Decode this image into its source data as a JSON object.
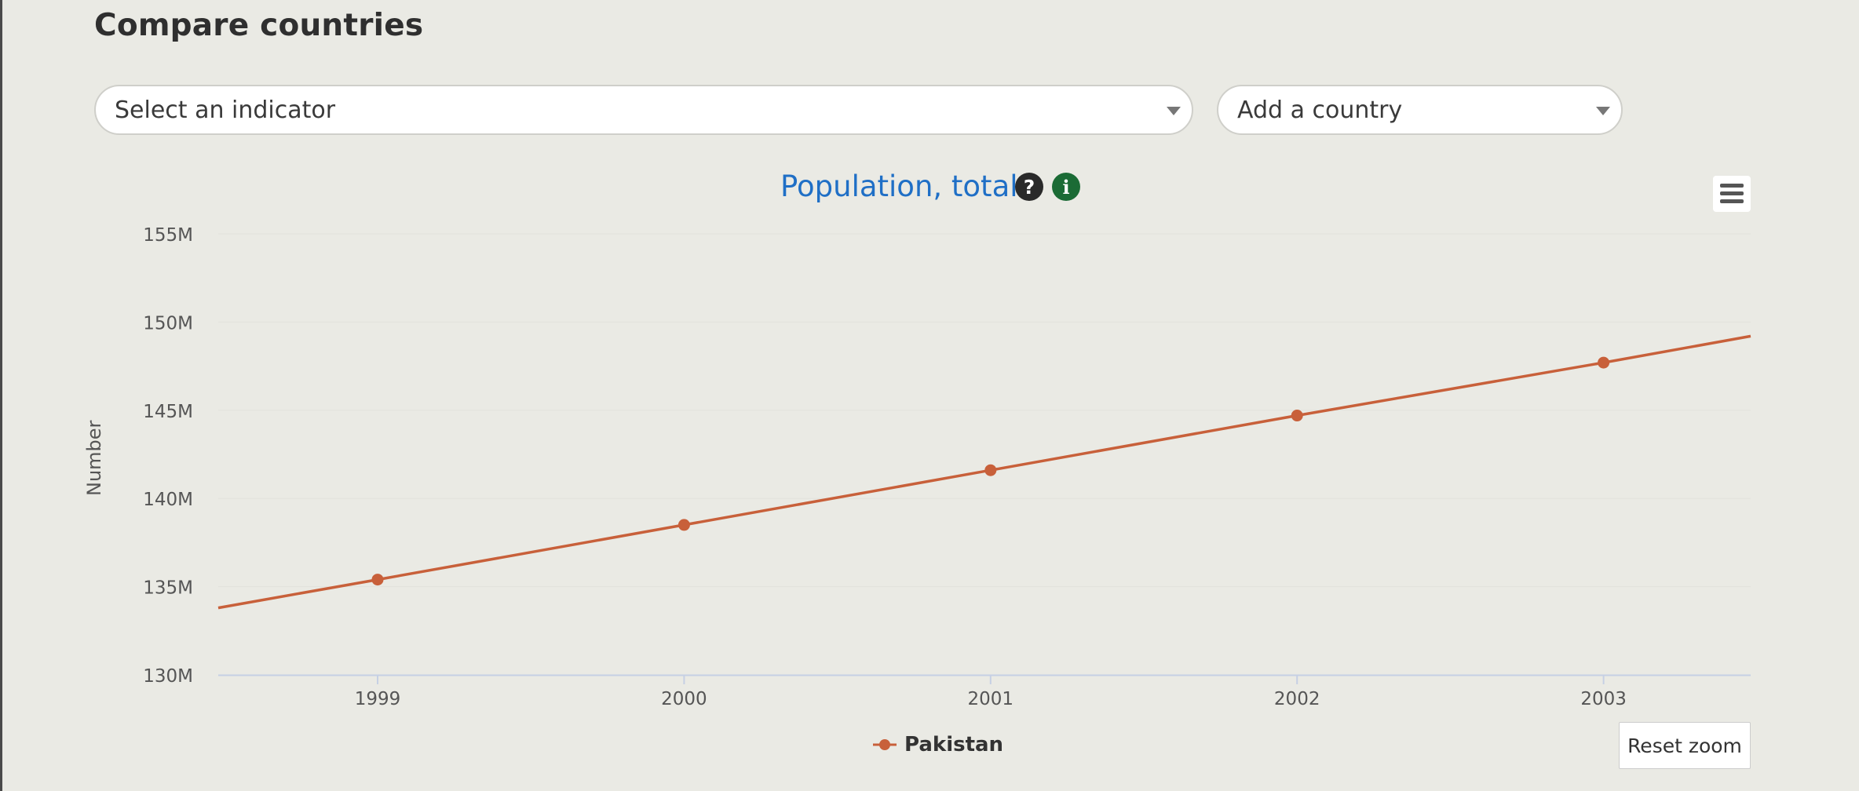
{
  "page": {
    "title": "Compare countries"
  },
  "controls": {
    "indicator_select": {
      "value": "Select an indicator"
    },
    "country_select": {
      "value": "Add a country"
    }
  },
  "chart_header": {
    "help_icon_glyph": "?",
    "info_icon_glyph": "i",
    "menu_icon": "hamburger-menu-icon"
  },
  "buttons": {
    "reset_zoom": "Reset zoom"
  },
  "colors": {
    "series": "#c8603a",
    "title": "#1f6fc6",
    "help_icon": "#2a2a2a",
    "info_icon": "#1b6b35"
  },
  "chart_data": {
    "type": "line",
    "title": "Population, total",
    "ylabel": "Number",
    "xlabel": "",
    "x_ticks": [
      "1999",
      "2000",
      "2001",
      "2002",
      "2003"
    ],
    "xlim": [
      1998.48,
      2003.48
    ],
    "y_ticks": [
      "130M",
      "135M",
      "140M",
      "145M",
      "150M",
      "155M"
    ],
    "ylim": [
      130000000,
      155000000
    ],
    "grid": true,
    "legend": "bottom-center",
    "series": [
      {
        "name": "Pakistan",
        "color": "#c8603a",
        "points": [
          {
            "x": 1999,
            "y": 135400000
          },
          {
            "x": 2000,
            "y": 138500000
          },
          {
            "x": 2001,
            "y": 141600000
          },
          {
            "x": 2002,
            "y": 144700000
          },
          {
            "x": 2003,
            "y": 147700000
          }
        ],
        "line_start": {
          "x": 1998.48,
          "y": 133800000
        },
        "line_end": {
          "x": 2003.48,
          "y": 149200000
        }
      }
    ]
  }
}
